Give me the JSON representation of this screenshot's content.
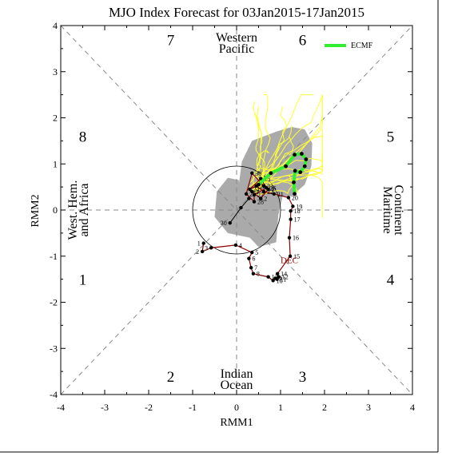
{
  "chart_data": {
    "type": "scatter",
    "title": "MJO Index Forecast for 03Jan2015-17Jan2015",
    "xlabel": "RMM1",
    "ylabel": "RMM2",
    "xlim": [
      -4,
      4
    ],
    "ylim": [
      -4,
      4
    ],
    "x_ticks": [
      "-4",
      "-3",
      "-2",
      "-1",
      "0",
      "1",
      "2",
      "3",
      "4"
    ],
    "y_ticks": [
      "-4",
      "-3",
      "-2",
      "-1",
      "0",
      "1",
      "2",
      "3",
      "4"
    ],
    "grid": false,
    "legend": {
      "position": "top-right",
      "entries": [
        {
          "name": "ECMF",
          "color": "#33ee33"
        }
      ]
    },
    "phase_labels": [
      {
        "text": "1",
        "x": -3.5,
        "y": -1.5
      },
      {
        "text": "2",
        "x": -1.5,
        "y": -3.6
      },
      {
        "text": "3",
        "x": 1.5,
        "y": -3.6
      },
      {
        "text": "4",
        "x": 3.5,
        "y": -1.5
      },
      {
        "text": "5",
        "x": 3.5,
        "y": 1.6
      },
      {
        "text": "6",
        "x": 1.5,
        "y": 3.7
      },
      {
        "text": "7",
        "x": -1.5,
        "y": 3.7
      },
      {
        "text": "8",
        "x": -3.5,
        "y": 1.6
      }
    ],
    "region_labels": {
      "top": [
        "Western",
        "Pacific"
      ],
      "bottom": [
        "Indian",
        "Ocean"
      ],
      "left": [
        "West. Hem.",
        "and Africa"
      ],
      "right": [
        "Maritime",
        "Continent"
      ]
    },
    "month_label": {
      "text": "DEC",
      "x": 1.0,
      "y": -1.15
    },
    "colors": {
      "observed": "#8b0000",
      "ensemble": "#ffff33",
      "ensemble_spread": "#aaaaaa",
      "forecast_mean": "#33ee33"
    },
    "observed": [
      {
        "label": "1",
        "x": -0.75,
        "y": -0.72
      },
      {
        "label": "2",
        "x": -0.78,
        "y": -0.9
      },
      {
        "label": "3",
        "x": -0.58,
        "y": -0.82
      },
      {
        "label": "4",
        "x": -0.02,
        "y": -0.76
      },
      {
        "label": "5",
        "x": 0.35,
        "y": -0.92
      },
      {
        "label": "6",
        "x": 0.28,
        "y": -1.05
      },
      {
        "label": "7",
        "x": 0.33,
        "y": -1.25
      },
      {
        "label": "8",
        "x": 0.38,
        "y": -1.38
      },
      {
        "label": "13",
        "x": 0.72,
        "y": -1.45
      },
      {
        "label": "10",
        "x": 0.83,
        "y": -1.53
      },
      {
        "label": "9",
        "x": 0.88,
        "y": -1.48
      },
      {
        "label": "11",
        "x": 0.92,
        "y": -1.5
      },
      {
        "label": "12",
        "x": 0.96,
        "y": -1.45
      },
      {
        "label": "14",
        "x": 0.93,
        "y": -1.38
      },
      {
        "label": "15",
        "x": 1.22,
        "y": -1.0
      },
      {
        "label": "16",
        "x": 1.2,
        "y": -0.6
      },
      {
        "label": "17",
        "x": 1.23,
        "y": -0.2
      },
      {
        "label": "18",
        "x": 1.23,
        "y": -0.02
      },
      {
        "label": "19",
        "x": 1.28,
        "y": 0.08
      },
      {
        "label": "20",
        "x": 1.18,
        "y": 0.27
      },
      {
        "label": "21",
        "x": 0.85,
        "y": 0.35
      },
      {
        "label": "22",
        "x": 0.62,
        "y": 0.4
      },
      {
        "label": "23",
        "x": 0.45,
        "y": 0.52
      },
      {
        "label": "24",
        "x": 0.3,
        "y": 0.45
      },
      {
        "label": "25",
        "x": 0.55,
        "y": 0.68
      },
      {
        "label": "26",
        "x": 0.68,
        "y": 0.48
      },
      {
        "label": "27",
        "x": 0.4,
        "y": 0.33
      },
      {
        "label": "28",
        "x": 0.4,
        "y": 0.18
      },
      {
        "label": "29",
        "x": 0.22,
        "y": 0.35
      },
      {
        "label": "30",
        "x": 0.35,
        "y": 0.8
      },
      {
        "label": "31",
        "x": 0.62,
        "y": 0.52
      },
      {
        "label": "1",
        "x": 0.72,
        "y": 0.45
      },
      {
        "label": "2",
        "x": 0.55,
        "y": 0.25
      },
      {
        "label": "3",
        "x": 0.35,
        "y": 0.4
      }
    ],
    "secondary_path": [
      {
        "label": "30",
        "x": -0.15,
        "y": -0.28
      },
      {
        "label": "",
        "x": 0.1,
        "y": 0.05
      },
      {
        "label": "",
        "x": 0.28,
        "y": 0.25
      }
    ],
    "forecast_mean": [
      {
        "x": 0.5,
        "y": 0.55
      },
      {
        "x": 0.78,
        "y": 0.8
      },
      {
        "x": 1.12,
        "y": 0.95
      },
      {
        "x": 1.32,
        "y": 1.2
      },
      {
        "x": 1.48,
        "y": 1.22
      },
      {
        "x": 1.58,
        "y": 1.1
      },
      {
        "x": 1.55,
        "y": 0.95
      },
      {
        "x": 1.45,
        "y": 0.82
      },
      {
        "x": 1.33,
        "y": 0.85
      },
      {
        "x": 1.3,
        "y": 0.6
      },
      {
        "x": 1.32,
        "y": 0.35
      }
    ],
    "ensemble_spread": [
      [
        0.1,
        0.0
      ],
      [
        0.05,
        0.55
      ],
      [
        0.12,
        1.05
      ],
      [
        0.35,
        1.5
      ],
      [
        0.9,
        1.7
      ],
      [
        1.25,
        1.8
      ],
      [
        1.55,
        1.75
      ],
      [
        1.72,
        1.45
      ],
      [
        1.7,
        0.95
      ],
      [
        1.55,
        0.55
      ],
      [
        1.25,
        0.3
      ],
      [
        1.05,
        0.3
      ],
      [
        0.95,
        -0.1
      ],
      [
        0.9,
        -0.7
      ],
      [
        0.5,
        -0.8
      ],
      [
        0.3,
        -0.6
      ],
      [
        -0.2,
        -0.5
      ],
      [
        -0.5,
        -0.15
      ],
      [
        -0.45,
        0.4
      ],
      [
        -0.2,
        0.7
      ],
      [
        0.05,
        0.65
      ]
    ]
  }
}
